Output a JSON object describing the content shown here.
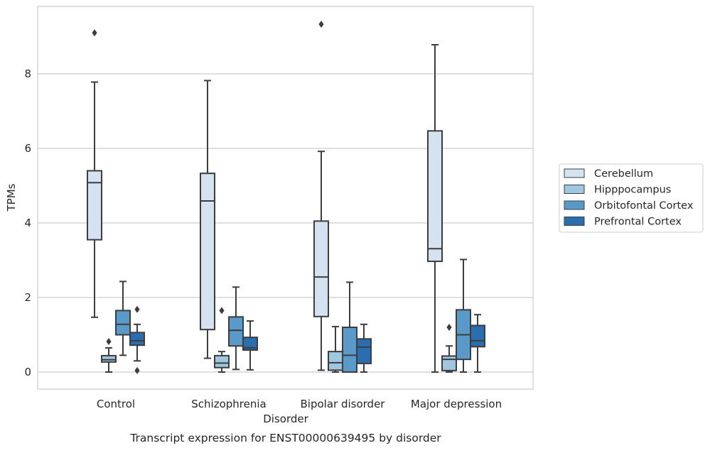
{
  "chart_data": {
    "type": "boxplot",
    "title": "",
    "caption": "Transcript expression for ENST00000639495 by disorder",
    "xlabel": "Disorder",
    "ylabel": "TPMs",
    "ylim": [
      -0.45,
      9.7
    ],
    "yticks": [
      0,
      2,
      4,
      6,
      8
    ],
    "grid": "horizontal",
    "legend_position": "right",
    "categories": [
      "Control",
      "Schizophrenia",
      "Bipolar disorder",
      "Major depression"
    ],
    "series": [
      {
        "name": "Cerebellum",
        "color": "#d5e3f1",
        "boxes": [
          {
            "whislo": 1.47,
            "q1": 3.55,
            "med": 5.08,
            "q3": 5.4,
            "whishi": 7.78,
            "fliers": [
              9.1
            ]
          },
          {
            "whislo": 0.37,
            "q1": 1.14,
            "med": 4.59,
            "q3": 5.33,
            "whishi": 7.82,
            "fliers": []
          },
          {
            "whislo": 0.05,
            "q1": 1.49,
            "med": 2.55,
            "q3": 4.05,
            "whishi": 5.92,
            "fliers": [
              9.33
            ]
          },
          {
            "whislo": 0.0,
            "q1": 2.97,
            "med": 3.31,
            "q3": 6.47,
            "whishi": 8.78,
            "fliers": []
          }
        ]
      },
      {
        "name": "Hipppocampus",
        "color": "#9fc8e0",
        "boxes": [
          {
            "whislo": 0.0,
            "q1": 0.27,
            "med": 0.33,
            "q3": 0.44,
            "whishi": 0.65,
            "fliers": [
              0.82
            ]
          },
          {
            "whislo": 0.0,
            "q1": 0.12,
            "med": 0.24,
            "q3": 0.44,
            "whishi": 0.55,
            "fliers": [
              1.65
            ]
          },
          {
            "whislo": 0.0,
            "q1": 0.05,
            "med": 0.25,
            "q3": 0.55,
            "whishi": 1.22,
            "fliers": []
          },
          {
            "whislo": 0.0,
            "q1": 0.04,
            "med": 0.34,
            "q3": 0.43,
            "whishi": 0.7,
            "fliers": [
              1.2
            ]
          }
        ]
      },
      {
        "name": "Orbitofontal Cortex",
        "color": "#5a9ac9",
        "boxes": [
          {
            "whislo": 0.45,
            "q1": 1.0,
            "med": 1.28,
            "q3": 1.65,
            "whishi": 2.43,
            "fliers": []
          },
          {
            "whislo": 0.07,
            "q1": 0.7,
            "med": 1.12,
            "q3": 1.48,
            "whishi": 2.28,
            "fliers": []
          },
          {
            "whislo": 0.0,
            "q1": 0.0,
            "med": 0.45,
            "q3": 1.2,
            "whishi": 2.41,
            "fliers": []
          },
          {
            "whislo": 0.0,
            "q1": 0.34,
            "med": 1.0,
            "q3": 1.67,
            "whishi": 3.02,
            "fliers": []
          }
        ]
      },
      {
        "name": "Prefrontal Cortex",
        "color": "#2b6eb0",
        "boxes": [
          {
            "whislo": 0.3,
            "q1": 0.72,
            "med": 0.84,
            "q3": 1.06,
            "whishi": 1.28,
            "fliers": [
              1.68,
              0.04
            ]
          },
          {
            "whislo": 0.06,
            "q1": 0.59,
            "med": 0.65,
            "q3": 0.93,
            "whishi": 1.37,
            "fliers": []
          },
          {
            "whislo": 0.0,
            "q1": 0.23,
            "med": 0.67,
            "q3": 0.89,
            "whishi": 1.28,
            "fliers": []
          },
          {
            "whislo": 0.0,
            "q1": 0.68,
            "med": 0.84,
            "q3": 1.25,
            "whishi": 1.54,
            "fliers": []
          }
        ]
      }
    ]
  }
}
